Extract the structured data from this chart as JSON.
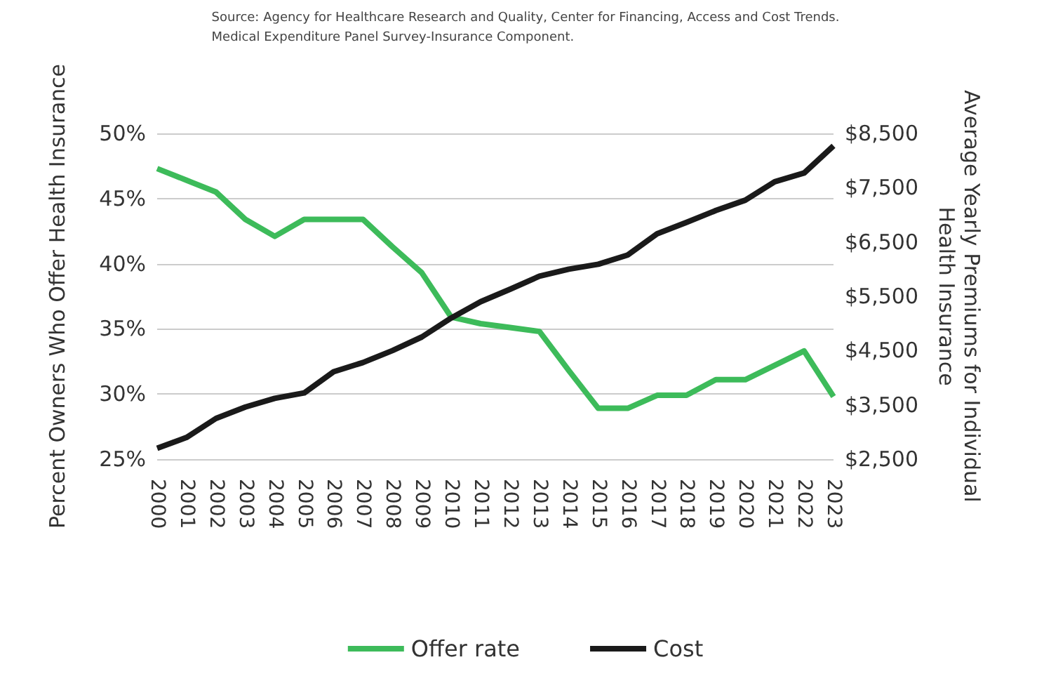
{
  "chart_data": {
    "type": "line",
    "annotations": [
      "Source: Agency for Healthcare Research and Quality, Center for Financing, Access and Cost Trends. Medical Expenditure Panel Survey-Insurance Component."
    ],
    "ylabel": "Percent Owners Who Offer Health Insurance",
    "y2label": "Average Yearly Premiums for Individual Health Insurance",
    "categories": [
      "2000",
      "2001",
      "2002",
      "2003",
      "2004",
      "2005",
      "2006",
      "2007",
      "2008",
      "2009",
      "2010",
      "2011",
      "2012",
      "2013",
      "2014",
      "2015",
      "2016",
      "2017",
      "2018",
      "2019",
      "2020",
      "2021",
      "2022",
      "2023"
    ],
    "series": [
      {
        "name": "Offer rate",
        "color": "#3dbb5a",
        "values": [
          47.3,
          46.4,
          45.5,
          43.4,
          42.1,
          43.4,
          43.4,
          43.4,
          41.3,
          39.3,
          35.9,
          35.4,
          35.1,
          34.8,
          31.8,
          28.9,
          28.9,
          29.9,
          29.9,
          31.1,
          31.1,
          32.2,
          33.3,
          29.8
        ]
      },
      {
        "name": "Cost",
        "color": "#1a1a1a",
        "axis": "y2",
        "values": [
          2700,
          2900,
          3250,
          3460,
          3620,
          3720,
          4110,
          4280,
          4500,
          4750,
          5100,
          5400,
          5630,
          5870,
          6000,
          6090,
          6260,
          6650,
          6860,
          7080,
          7270,
          7610,
          7770,
          8270
        ]
      }
    ],
    "ylim": [
      25,
      50
    ],
    "yticks": [
      {
        "value": 25,
        "label": "25%"
      },
      {
        "value": 30,
        "label": "30%"
      },
      {
        "value": 35,
        "label": "35%"
      },
      {
        "value": 40,
        "label": "40%"
      },
      {
        "value": 45,
        "label": "45%"
      },
      {
        "value": 50,
        "label": "50%"
      }
    ],
    "y2lim": [
      2500,
      8500
    ],
    "y2ticks": [
      {
        "value": 2500,
        "label": "$2,500"
      },
      {
        "value": 3500,
        "label": "$3,500"
      },
      {
        "value": 4500,
        "label": "$4,500"
      },
      {
        "value": 5500,
        "label": "$5,500"
      },
      {
        "value": 6500,
        "label": "$6,500"
      },
      {
        "value": 7500,
        "label": "$7,500"
      },
      {
        "value": 8500,
        "label": "$8,500"
      }
    ],
    "grid": "y",
    "legend": "bottom",
    "marker": "none",
    "line_style": "solid"
  }
}
